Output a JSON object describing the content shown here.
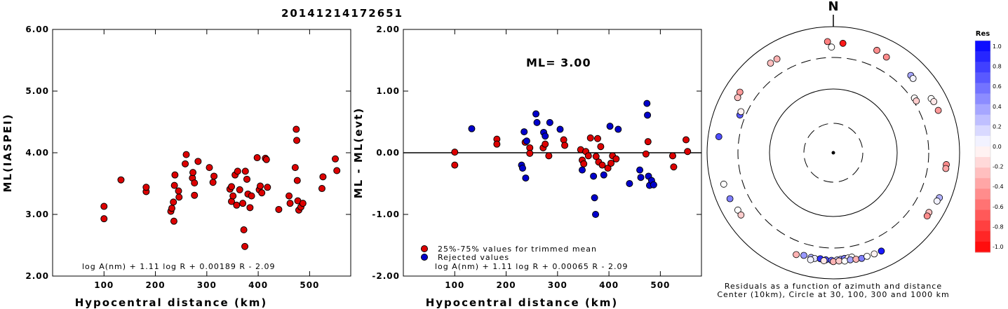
{
  "page_title": "20141214172651",
  "chart_data": [
    {
      "type": "scatter",
      "xlabel": "Hypocentral distance (km)",
      "ylabel": "ML(IASPEI)",
      "xlim": [
        0,
        580
      ],
      "ylim": [
        2.0,
        6.0
      ],
      "xticks": [
        "100",
        "200",
        "300",
        "400",
        "500"
      ],
      "yticks": [
        "2.00",
        "3.00",
        "4.00",
        "5.00",
        "6.00"
      ],
      "formula": "log A(nm) + 1.11 log R + 0.00189 R - 2.09",
      "point_color": "#dd0000",
      "points": [
        [
          100,
          2.93
        ],
        [
          100,
          3.13
        ],
        [
          133,
          3.56
        ],
        [
          182,
          3.37
        ],
        [
          182,
          3.44
        ],
        [
          230,
          3.05
        ],
        [
          232,
          3.1
        ],
        [
          235,
          3.2
        ],
        [
          236,
          2.89
        ],
        [
          237,
          3.47
        ],
        [
          238,
          3.64
        ],
        [
          245,
          3.38
        ],
        [
          246,
          3.28
        ],
        [
          258,
          3.82
        ],
        [
          260,
          3.97
        ],
        [
          272,
          3.59
        ],
        [
          273,
          3.68
        ],
        [
          276,
          3.51
        ],
        [
          276,
          3.31
        ],
        [
          283,
          3.86
        ],
        [
          305,
          3.76
        ],
        [
          312,
          3.52
        ],
        [
          314,
          3.62
        ],
        [
          345,
          3.41
        ],
        [
          348,
          3.45
        ],
        [
          348,
          3.21
        ],
        [
          351,
          3.3
        ],
        [
          355,
          3.64
        ],
        [
          358,
          3.15
        ],
        [
          360,
          3.7
        ],
        [
          364,
          3.4
        ],
        [
          370,
          3.18
        ],
        [
          372,
          2.75
        ],
        [
          374,
          2.48
        ],
        [
          375,
          3.7
        ],
        [
          378,
          3.57
        ],
        [
          380,
          3.33
        ],
        [
          384,
          3.11
        ],
        [
          387,
          3.3
        ],
        [
          398,
          3.92
        ],
        [
          402,
          3.4
        ],
        [
          404,
          3.46
        ],
        [
          407,
          3.35
        ],
        [
          414,
          3.91
        ],
        [
          416,
          3.89
        ],
        [
          418,
          3.44
        ],
        [
          440,
          3.08
        ],
        [
          460,
          3.3
        ],
        [
          462,
          3.18
        ],
        [
          472,
          3.76
        ],
        [
          474,
          4.38
        ],
        [
          475,
          4.2
        ],
        [
          476,
          3.55
        ],
        [
          477,
          3.22
        ],
        [
          479,
          3.07
        ],
        [
          483,
          3.12
        ],
        [
          487,
          3.18
        ],
        [
          524,
          3.42
        ],
        [
          526,
          3.61
        ],
        [
          550,
          3.9
        ],
        [
          553,
          3.71
        ]
      ]
    },
    {
      "type": "scatter",
      "xlabel": "Hypocentral distance (km)",
      "ylabel": "ML - ML(evt)",
      "xlim": [
        0,
        580
      ],
      "ylim": [
        -2.0,
        2.0
      ],
      "xticks": [
        "100",
        "200",
        "300",
        "400",
        "500"
      ],
      "yticks": [
        "-2.00",
        "-1.00",
        "0.00",
        "1.00",
        "2.00"
      ],
      "annotation": "ML= 3.00",
      "formula": "log A(nm) + 1.11 log R + 0.00065 R - 2.09",
      "legend": [
        {
          "label": "25%-75% values for trimmed mean",
          "color": "#dd0000"
        },
        {
          "label": "Rejected values",
          "color": "#0000cc"
        }
      ],
      "series": [
        {
          "name": "25%-75% values for trimmed mean",
          "color": "#dd0000",
          "points": [
            [
              100,
              0.01
            ],
            [
              100,
              -0.2
            ],
            [
              182,
              0.22
            ],
            [
              182,
              0.14
            ],
            [
              237,
              0.17
            ],
            [
              246,
              0.08
            ],
            [
              246,
              -0.01
            ],
            [
              272,
              0.08
            ],
            [
              276,
              0.14
            ],
            [
              283,
              -0.05
            ],
            [
              312,
              0.21
            ],
            [
              314,
              0.12
            ],
            [
              345,
              0.05
            ],
            [
              348,
              -0.12
            ],
            [
              351,
              -0.18
            ],
            [
              355,
              0.02
            ],
            [
              360,
              -0.05
            ],
            [
              364,
              0.24
            ],
            [
              375,
              -0.06
            ],
            [
              378,
              0.23
            ],
            [
              380,
              -0.15
            ],
            [
              384,
              0.1
            ],
            [
              387,
              -0.2
            ],
            [
              398,
              -0.25
            ],
            [
              404,
              -0.17
            ],
            [
              407,
              -0.05
            ],
            [
              414,
              -0.1
            ],
            [
              472,
              -0.02
            ],
            [
              476,
              0.18
            ],
            [
              524,
              -0.05
            ],
            [
              526,
              -0.23
            ],
            [
              550,
              0.21
            ],
            [
              553,
              0.02
            ]
          ]
        },
        {
          "name": "Rejected values",
          "color": "#0000cc",
          "points": [
            [
              133,
              0.39
            ],
            [
              230,
              -0.2
            ],
            [
              232,
              -0.25
            ],
            [
              235,
              0.34
            ],
            [
              238,
              -0.41
            ],
            [
              240,
              0.19
            ],
            [
              258,
              0.63
            ],
            [
              260,
              0.49
            ],
            [
              273,
              0.33
            ],
            [
              276,
              0.27
            ],
            [
              285,
              0.49
            ],
            [
              305,
              0.38
            ],
            [
              348,
              -0.28
            ],
            [
              370,
              -0.38
            ],
            [
              372,
              -0.73
            ],
            [
              374,
              -1.0
            ],
            [
              390,
              -0.36
            ],
            [
              402,
              0.43
            ],
            [
              418,
              0.38
            ],
            [
              440,
              -0.5
            ],
            [
              460,
              -0.28
            ],
            [
              462,
              -0.4
            ],
            [
              474,
              0.8
            ],
            [
              475,
              0.61
            ],
            [
              477,
              -0.38
            ],
            [
              479,
              -0.53
            ],
            [
              483,
              -0.45
            ],
            [
              487,
              -0.52
            ]
          ]
        }
      ]
    },
    {
      "type": "scatter",
      "title": "N",
      "caption_line1": "Residuals as a function of azimuth and distance",
      "caption_line2": "Center (10km), Circle at 30, 100, 300 and 1000 km",
      "colorbar_title": "Res",
      "colorbar_ticks": [
        "1.0",
        "0.8",
        "0.6",
        "0.4",
        "0.2",
        "0.0",
        "-0.2",
        "-0.4",
        "-0.6",
        "-0.8",
        "-1.0"
      ],
      "colorbar_range": [
        -1.0,
        1.0
      ],
      "rings_km": [
        30,
        100,
        300,
        1000
      ],
      "points": [
        {
          "az": 0,
          "dist": 1000,
          "res": 0.0
        },
        {
          "az": 8,
          "dist": 1000,
          "res": -0.1
        }
      ]
    }
  ],
  "map_residual_points": [
    {
      "az": 357,
      "dist": 560,
      "res": -0.5
    },
    {
      "az": 5,
      "dist": 530,
      "res": -0.9
    },
    {
      "az": 359,
      "dist": 450,
      "res": 0.0
    },
    {
      "az": 23,
      "dist": 560,
      "res": -0.45
    },
    {
      "az": 29,
      "dist": 520,
      "res": -0.45
    },
    {
      "az": 329,
      "dist": 520,
      "res": -0.3
    },
    {
      "az": 325,
      "dist": 520,
      "res": -0.25
    },
    {
      "az": 303,
      "dist": 560,
      "res": -0.4
    },
    {
      "az": 300,
      "dist": 540,
      "res": -0.25
    },
    {
      "az": 45,
      "dist": 520,
      "res": 0.35
    },
    {
      "az": 47,
      "dist": 510,
      "res": 0.05
    },
    {
      "az": 292,
      "dist": 370,
      "res": 0.65
    },
    {
      "az": 294,
      "dist": 375,
      "res": -0.05
    },
    {
      "az": 61,
      "dist": 570,
      "res": 0.0
    },
    {
      "az": 63,
      "dist": 590,
      "res": -0.1
    },
    {
      "az": 68,
      "dist": 600,
      "res": -0.4
    },
    {
      "az": 56,
      "dist": 330,
      "res": 0.0
    },
    {
      "az": 58,
      "dist": 330,
      "res": -0.2
    },
    {
      "az": 278,
      "dist": 660,
      "res": 0.7
    },
    {
      "az": 254,
      "dist": 620,
      "res": 0.0
    },
    {
      "az": 246,
      "dist": 600,
      "res": 0.5
    },
    {
      "az": 239,
      "dist": 560,
      "res": 0.0
    },
    {
      "az": 236,
      "dist": 560,
      "res": -0.2
    },
    {
      "az": 96,
      "dist": 610,
      "res": -0.45
    },
    {
      "az": 98,
      "dist": 610,
      "res": -0.35
    },
    {
      "az": 113,
      "dist": 650,
      "res": 0.3
    },
    {
      "az": 115,
      "dist": 630,
      "res": 0.05
    },
    {
      "az": 122,
      "dist": 590,
      "res": -0.25
    },
    {
      "az": 124,
      "dist": 600,
      "res": -0.45
    },
    {
      "az": 200,
      "dist": 500,
      "res": -0.3
    },
    {
      "az": 196,
      "dist": 470,
      "res": 0.4
    },
    {
      "az": 192,
      "dist": 475,
      "res": 0.3
    },
    {
      "az": 190,
      "dist": 480,
      "res": 0.1
    },
    {
      "az": 187,
      "dist": 470,
      "res": 0.8
    },
    {
      "az": 184,
      "dist": 480,
      "res": 0.7
    },
    {
      "az": 181,
      "dist": 485,
      "res": 0.6
    },
    {
      "az": 178,
      "dist": 480,
      "res": 0.2
    },
    {
      "az": 176,
      "dist": 470,
      "res": 0.4
    },
    {
      "az": 174,
      "dist": 460,
      "res": 0.5
    },
    {
      "az": 172,
      "dist": 460,
      "res": -0.05
    },
    {
      "az": 170,
      "dist": 455,
      "res": 0.0
    },
    {
      "az": 185,
      "dist": 500,
      "res": -0.1
    },
    {
      "az": 180,
      "dist": 510,
      "res": -0.3
    },
    {
      "az": 177,
      "dist": 500,
      "res": -0.2
    },
    {
      "az": 174,
      "dist": 510,
      "res": 0.0
    },
    {
      "az": 171,
      "dist": 500,
      "res": 0.35
    },
    {
      "az": 168,
      "dist": 510,
      "res": -0.3
    },
    {
      "az": 165,
      "dist": 520,
      "res": 0.5
    },
    {
      "az": 162,
      "dist": 510,
      "res": 0.0
    },
    {
      "az": 158,
      "dist": 515,
      "res": -0.05
    },
    {
      "az": 154,
      "dist": 520,
      "res": 0.9
    },
    {
      "az": 192,
      "dist": 520,
      "res": 0.05
    }
  ]
}
